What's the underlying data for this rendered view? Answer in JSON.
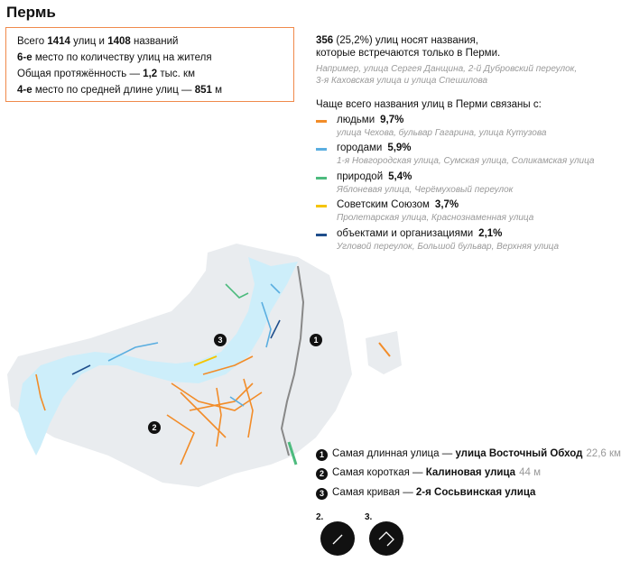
{
  "title": "Пермь",
  "stats": {
    "line1": {
      "pre": "Всего ",
      "streets": "1414",
      "mid": " улиц и ",
      "names": "1408",
      "post": " названий"
    },
    "line2": {
      "rank": "6-е",
      "text": " место по количеству улиц на жителя"
    },
    "line3": {
      "pre": "Общая протяжённость — ",
      "value": "1,2",
      "post": " тыс. км"
    },
    "line4": {
      "rank": "4-е",
      "mid": " место по средней длине улиц — ",
      "value": "851",
      "post": " м"
    }
  },
  "unique": {
    "count": "356",
    "text1": " (25,2%) улиц носят названия,",
    "text2": "которые встречаются только в Перми.",
    "example1": "Например, улица Сергея Данщина, 2-й Дубровский переулок,",
    "example2": "3-я Каховская улица и улица Спешилова"
  },
  "categories_heading": "Чаще всего названия улиц в Перми связаны с:",
  "categories": [
    {
      "label": "людьми",
      "pct": "9,7%",
      "example": "улица Чехова, бульвар Гагарина, улица Кутузова",
      "color": "#f28c28"
    },
    {
      "label": "городами",
      "pct": "5,9%",
      "example": "1-я Новгородская улица, Сумская улица, Соликамская улица",
      "color": "#5aaee0"
    },
    {
      "label": "природой",
      "pct": "5,4%",
      "example": "Яблоневая улица, Черёмуховый переулок",
      "color": "#4dbb7e"
    },
    {
      "label": "Советским Союзом",
      "pct": "3,7%",
      "example": "Пролетарская улица, Краснознаменная улица",
      "color": "#f5c400"
    },
    {
      "label": "объектами и организациями",
      "pct": "2,1%",
      "example": "Угловой переулок, Большой бульвар, Верхняя улица",
      "color": "#1f4e8c"
    }
  ],
  "facts": [
    {
      "num": "1",
      "pre": "Самая длинная улица — ",
      "name": "улица Восточный Обход",
      "extra": "22,6 км"
    },
    {
      "num": "2",
      "pre": "Самая короткая — ",
      "name": "Калиновая улица",
      "extra": "44 м"
    },
    {
      "num": "3",
      "pre": "Самая кривая — ",
      "name": "2-я Сосьвинская улица",
      "extra": ""
    }
  ],
  "shape_labels": [
    "2.",
    "3."
  ],
  "map_markers": [
    "1",
    "2",
    "3"
  ],
  "colors": {
    "accent": "#f08a4b",
    "river": "#cdeefa",
    "land": "#e9ecef",
    "road": "#888888"
  }
}
